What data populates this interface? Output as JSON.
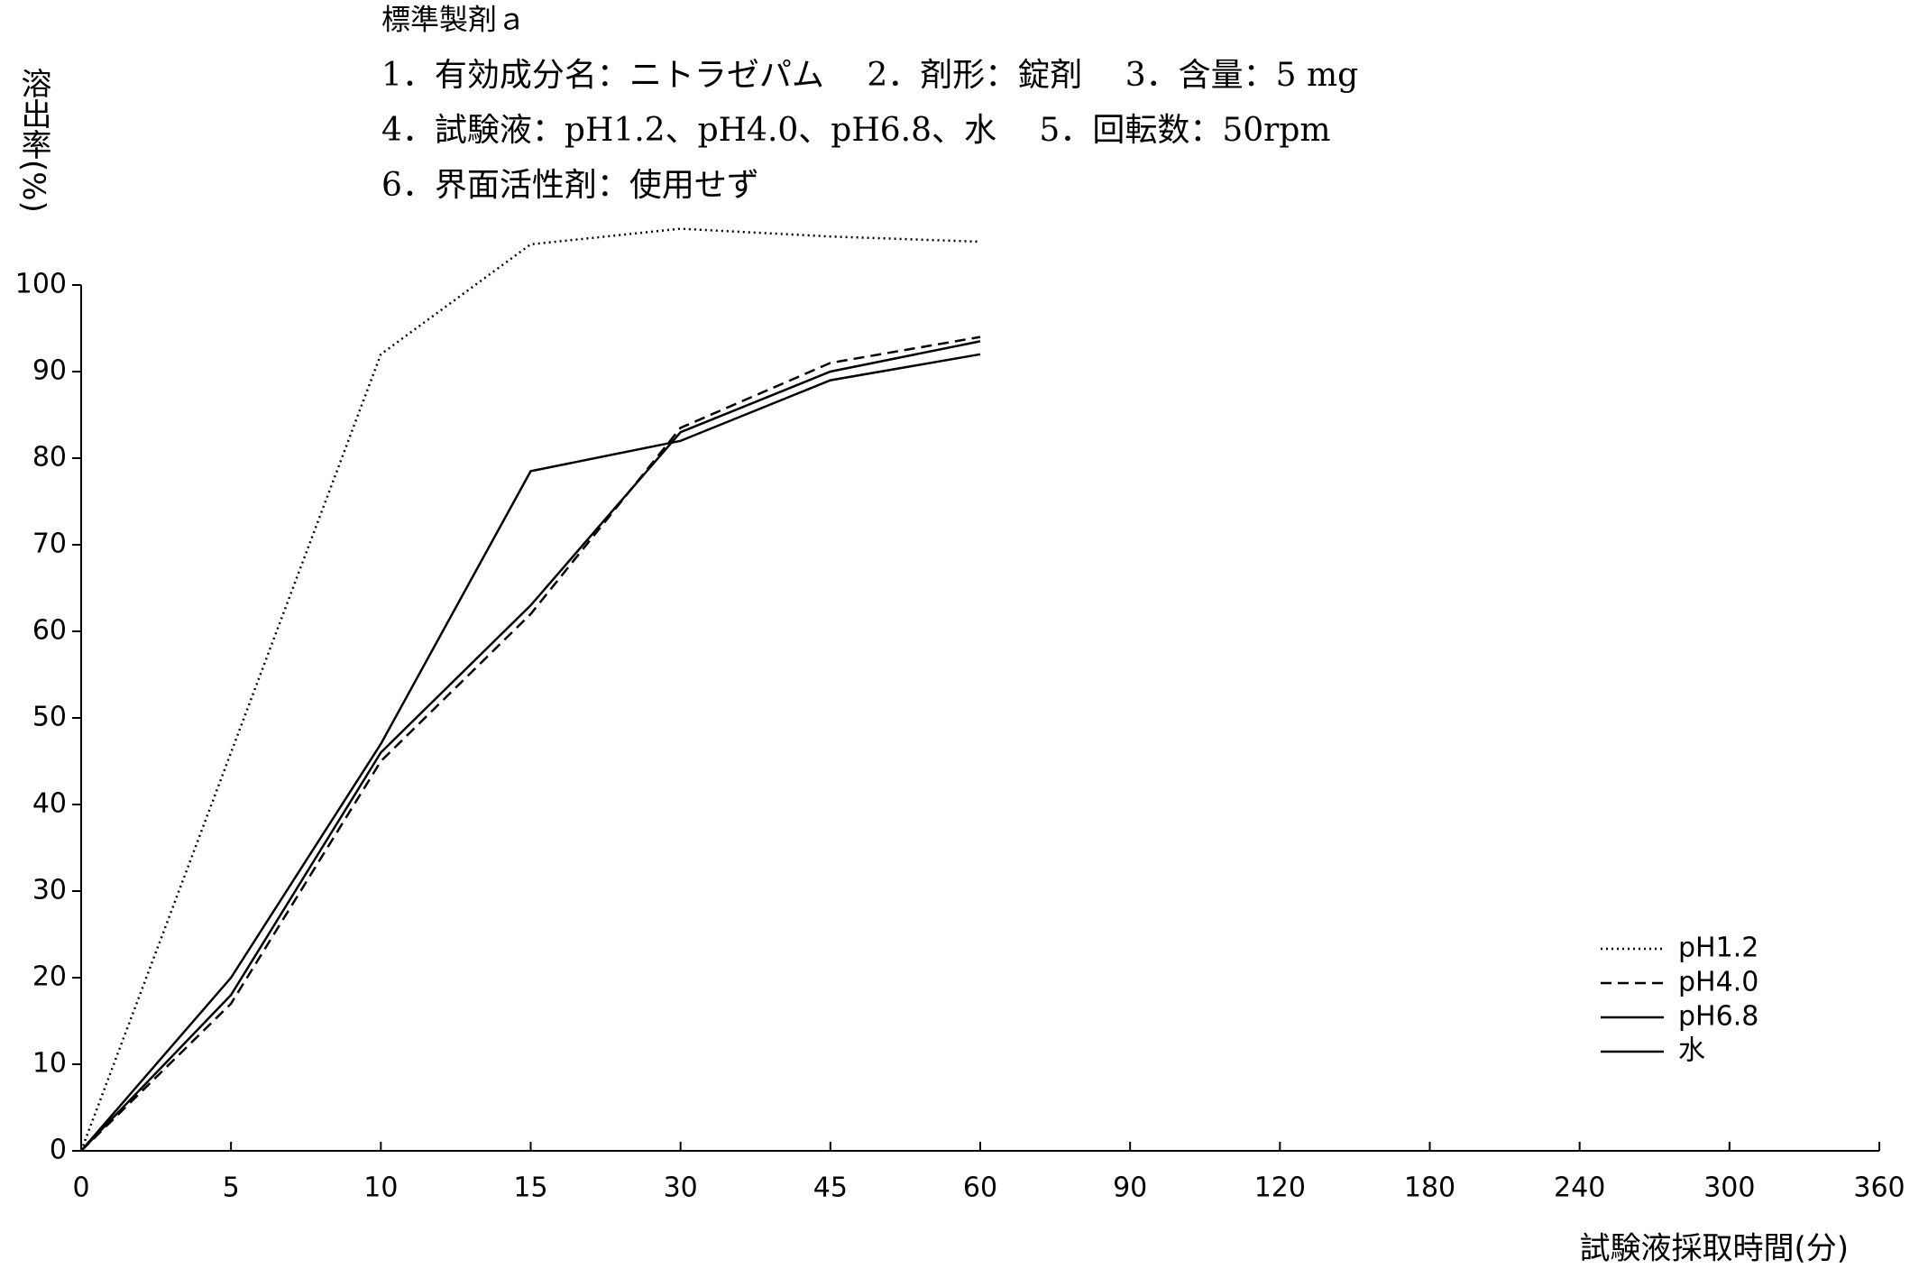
{
  "chart_data": {
    "type": "line",
    "title": "標準製剤ａ",
    "annotations": [
      "1．有効成分名：ニトラゼパム　 2．剤形：錠剤　 3．含量：5 mg",
      "4．試験液：pH1.2、pH4.0、pH6.8、水　 5．回転数：50rpm",
      "6．界面活性剤：使用せず"
    ],
    "y_label": "溶出率(%)",
    "x_label": "試験液採取時間(分)",
    "categories": [
      "0",
      "5",
      "10",
      "15",
      "30",
      "45",
      "60",
      "90",
      "120",
      "180",
      "240",
      "300",
      "360"
    ],
    "series": [
      {
        "name": "pH1.2",
        "color": "#000000",
        "dash": "dotted",
        "values": [
          0,
          46,
          92,
          104.7,
          106.5,
          105.6,
          105,
          null,
          null,
          null,
          null,
          null,
          null
        ]
      },
      {
        "name": "pH4.0",
        "color": "#000000",
        "dash": "dashed",
        "values": [
          0,
          17,
          45,
          62,
          83.5,
          91,
          94,
          null,
          null,
          null,
          null,
          null,
          null
        ]
      },
      {
        "name": "pH6.8",
        "color": "#000000",
        "dash": "solid",
        "values": [
          0,
          18,
          46,
          63,
          83,
          90,
          93.5,
          null,
          null,
          null,
          null,
          null,
          null
        ]
      },
      {
        "name": "水",
        "color": "#000000",
        "dash": "solid",
        "values": [
          0,
          20,
          47,
          78.5,
          82,
          89,
          92,
          null,
          null,
          null,
          null,
          null,
          null
        ]
      }
    ],
    "ylim": [
      0,
      100
    ],
    "yticks": [
      0,
      10,
      20,
      30,
      40,
      50,
      60,
      70,
      80,
      90,
      100
    ],
    "legend": "lower right"
  }
}
